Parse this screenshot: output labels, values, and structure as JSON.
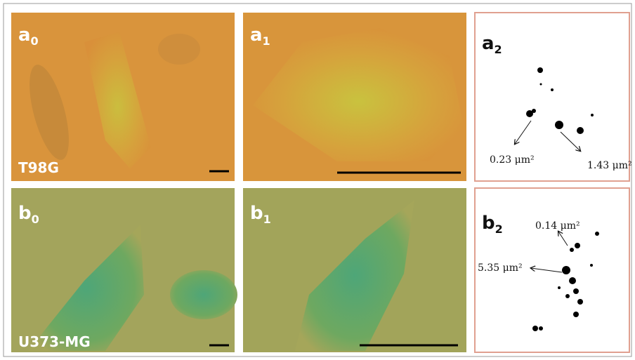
{
  "panels": [
    {
      "label": "a",
      "subscript": "0",
      "caption": "T98G"
    },
    {
      "label": "a",
      "subscript": "1"
    },
    {
      "label": "a",
      "subscript": "2",
      "annotations": [
        "0.23 μm²",
        "1.43 μm²"
      ]
    },
    {
      "label": "b",
      "subscript": "0",
      "caption": "U373-MG"
    },
    {
      "label": "b",
      "subscript": "1"
    },
    {
      "label": "b",
      "subscript": "2",
      "annotations": [
        "0.14 μm²",
        "5.35 μm²"
      ]
    }
  ]
}
